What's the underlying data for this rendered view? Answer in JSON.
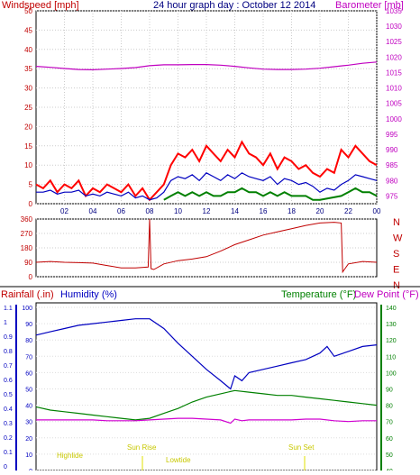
{
  "header": {
    "left_title": "Windspeed [mph]",
    "center_title": "24 hour graph day : October 12 2014",
    "right_title": "Barometer [mb]"
  },
  "colors": {
    "wind": "#ff0000",
    "gust_avg": "#0000c0",
    "green": "#008000",
    "barometer": "#c000c0",
    "direction": "#c00000",
    "humidity": "#0000c0",
    "temperature": "#008000",
    "dewpoint": "#d000d0",
    "rain": "#c00000",
    "astro": "#e0e000"
  },
  "bottom_header": {
    "rainfall_label": "Rainfall (.in)",
    "humidity_label": "Humidity (%)",
    "temperature_label": "Temperature (°F)",
    "dewpoint_label": "Dew Point (°F)"
  },
  "astro_labels": {
    "highlide": "Highlide",
    "sunrise": "Sun Rise",
    "lowtide": "Lowtide",
    "sunset": "Sun Set"
  },
  "chart_data": [
    {
      "type": "line",
      "name": "wind_barometer",
      "x_ticks": [
        "02",
        "04",
        "06",
        "08",
        "10",
        "12",
        "14",
        "16",
        "18",
        "20",
        "22",
        "00"
      ],
      "x_ticks_hours": [
        2,
        4,
        6,
        8,
        10,
        12,
        14,
        16,
        18,
        20,
        22,
        24
      ],
      "xlim": [
        0,
        24
      ],
      "left_ticks": [
        0,
        5,
        10,
        15,
        20,
        25,
        30,
        35,
        40,
        45,
        50
      ],
      "ylim_left": [
        0,
        50
      ],
      "right_ticks": [
        975,
        980,
        985,
        990,
        995,
        1000,
        1005,
        1010,
        1015,
        1020,
        1025,
        1030,
        1035
      ],
      "ylim_right": [
        972.5,
        1035
      ],
      "series": [
        {
          "role": "windspeed",
          "x": [
            0,
            0.5,
            1,
            1.5,
            2,
            2.5,
            3,
            3.5,
            4,
            4.5,
            5,
            5.5,
            6,
            6.5,
            7,
            7.5,
            8,
            8.5,
            9,
            9.5,
            10,
            10.5,
            11,
            11.5,
            12,
            12.5,
            13,
            13.5,
            14,
            14.5,
            15,
            15.5,
            16,
            16.5,
            17,
            17.5,
            18,
            18.5,
            19,
            19.5,
            20,
            20.5,
            21,
            21.5,
            22,
            22.5,
            23,
            23.5,
            24
          ],
          "values": [
            5,
            4,
            6,
            3,
            5,
            4,
            6,
            2,
            4,
            3,
            5,
            4,
            3,
            5,
            2,
            4,
            1,
            3,
            5,
            10,
            13,
            12,
            14,
            11,
            15,
            13,
            11,
            14,
            12,
            16,
            13,
            12,
            10,
            13,
            9,
            12,
            11,
            9,
            10,
            8,
            7,
            9,
            8,
            14,
            12,
            15,
            13,
            11,
            10
          ]
        },
        {
          "role": "average_wind",
          "x": [
            0,
            0.5,
            1,
            1.5,
            2,
            2.5,
            3,
            3.5,
            4,
            4.5,
            5,
            5.5,
            6,
            6.5,
            7,
            7.5,
            8,
            8.5,
            9,
            9.5,
            10,
            10.5,
            11,
            11.5,
            12,
            12.5,
            13,
            13.5,
            14,
            14.5,
            15,
            15.5,
            16,
            16.5,
            17,
            17.5,
            18,
            18.5,
            19,
            19.5,
            20,
            20.5,
            21,
            21.5,
            22,
            22.5,
            23,
            23.5,
            24
          ],
          "values": [
            3,
            3,
            3.5,
            2.5,
            3,
            3,
            3.5,
            2,
            2.5,
            2,
            3,
            2.5,
            2,
            3,
            1.5,
            2,
            1,
            1.5,
            3,
            6,
            7,
            6.5,
            7.5,
            6,
            8,
            7,
            6,
            7.5,
            6.5,
            8,
            7,
            6.5,
            6,
            7,
            5,
            6.5,
            6,
            5,
            5.5,
            4.5,
            3,
            4,
            3.5,
            5,
            6,
            7.5,
            7,
            6.5,
            6
          ]
        },
        {
          "role": "gust_green",
          "x": [
            9,
            9.5,
            10,
            10.5,
            11,
            11.5,
            12,
            12.5,
            13,
            13.5,
            14,
            14.5,
            15,
            15.5,
            16,
            16.5,
            17,
            17.5,
            18,
            18.5,
            19,
            19.5,
            20,
            21.5,
            22,
            22.5,
            23,
            23.5,
            24
          ],
          "values": [
            1,
            2,
            3,
            2,
            3,
            2,
            3,
            2,
            2,
            3,
            3,
            4,
            3,
            3,
            2,
            3,
            2,
            3,
            2,
            2,
            2,
            1,
            1,
            2,
            3,
            4,
            3,
            3,
            2
          ]
        },
        {
          "role": "barometer",
          "axis": "right",
          "x": [
            0,
            1,
            2,
            3,
            4,
            5,
            6,
            7,
            8,
            9,
            10,
            11,
            12,
            13,
            14,
            15,
            16,
            17,
            18,
            19,
            20,
            21,
            22,
            23,
            24
          ],
          "values": [
            1017,
            1016.7,
            1016.3,
            1016,
            1015.9,
            1016.1,
            1016.3,
            1016.6,
            1017.2,
            1017.5,
            1017.5,
            1017.6,
            1017.6,
            1017.4,
            1017,
            1016.5,
            1016.1,
            1016,
            1016,
            1016.1,
            1016.4,
            1016.9,
            1017.4,
            1018,
            1018.4
          ]
        }
      ]
    },
    {
      "type": "line",
      "name": "wind_direction",
      "xlim": [
        0,
        24
      ],
      "left_ticks": [
        0,
        90,
        180,
        270,
        360
      ],
      "ylim": [
        0,
        360
      ],
      "right_labels": [
        "N",
        "W",
        "S",
        "E",
        "N"
      ],
      "series": [
        {
          "role": "direction",
          "x": [
            0,
            1,
            2,
            3,
            4,
            5,
            6,
            7,
            7.9,
            8,
            8.1,
            8.3,
            9,
            10,
            11,
            12,
            13,
            14,
            15,
            16,
            17,
            18,
            19,
            20,
            21,
            21.5,
            21.6,
            22,
            23,
            24
          ],
          "values": [
            90,
            95,
            90,
            88,
            85,
            70,
            55,
            55,
            60,
            360,
            50,
            45,
            80,
            100,
            110,
            125,
            160,
            200,
            230,
            260,
            280,
            300,
            320,
            335,
            340,
            335,
            30,
            80,
            95,
            90
          ]
        }
      ]
    },
    {
      "type": "line",
      "name": "humidity_temperature",
      "xlim": [
        0,
        24
      ],
      "rain_ticks": [
        "0",
        "0.1",
        "0.2",
        "0.3",
        "0.4",
        "0.5",
        "0.6",
        "0.7",
        "0.8",
        "0.9",
        "1",
        "1.1"
      ],
      "humidity_ticks": [
        0,
        10,
        20,
        30,
        40,
        50,
        60,
        70,
        80,
        90,
        100
      ],
      "ylim_humidity": [
        0,
        100
      ],
      "temperature_ticks": [
        40,
        50,
        60,
        70,
        80,
        90,
        100,
        110,
        120,
        130,
        140
      ],
      "ylim_temperature": [
        40,
        140
      ],
      "series": [
        {
          "role": "humidity",
          "x": [
            0,
            1,
            2,
            3,
            4,
            5,
            6,
            7,
            8,
            9,
            10,
            11,
            12,
            13,
            13.7,
            14,
            14.5,
            15,
            16,
            17,
            18,
            19,
            20,
            20.5,
            21,
            22,
            23,
            24
          ],
          "values": [
            83,
            85,
            87,
            89,
            90,
            91,
            92,
            93,
            93,
            87,
            78,
            70,
            62,
            55,
            50,
            58,
            55,
            60,
            62,
            64,
            66,
            68,
            72,
            76,
            70,
            73,
            76,
            77
          ]
        },
        {
          "role": "temperature",
          "axis": "temperature",
          "x": [
            0,
            1,
            2,
            3,
            4,
            5,
            6,
            7,
            8,
            9,
            10,
            11,
            12,
            13,
            14,
            15,
            16,
            17,
            18,
            19,
            20,
            21,
            22,
            23,
            24
          ],
          "values": [
            79,
            77,
            76,
            75,
            74,
            73,
            72,
            71,
            72,
            75,
            78,
            82,
            85,
            87,
            89,
            88,
            87,
            86,
            86,
            85,
            84,
            83,
            82,
            81,
            80
          ]
        },
        {
          "role": "dewpoint",
          "axis": "temperature",
          "x": [
            0,
            1,
            2,
            3,
            4,
            5,
            6,
            7,
            8,
            9,
            10,
            11,
            12,
            13,
            13.7,
            14,
            14.5,
            15,
            16,
            17,
            18,
            19,
            20,
            21,
            22,
            23,
            24
          ],
          "values": [
            71,
            71,
            71,
            71,
            71,
            70.5,
            70.5,
            70.5,
            71,
            71.5,
            72,
            72,
            71.5,
            71,
            69,
            71.5,
            70.5,
            71,
            71,
            71,
            71,
            71.5,
            71.5,
            70.5,
            70,
            70.5,
            70.5
          ]
        }
      ]
    }
  ]
}
